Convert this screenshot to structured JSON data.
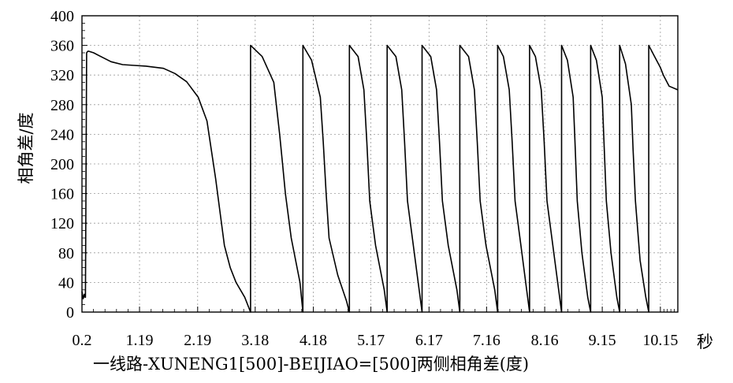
{
  "chart_data": {
    "type": "line",
    "title": "",
    "caption": "一线路-XUNENG1[500]-BEIJIAO=[500]两侧相角差(度)",
    "ylabel": "相角差/度",
    "xunit": "秒",
    "ylim": [
      0,
      400
    ],
    "xlim": [
      0.2,
      10.45
    ],
    "yticks": [
      0,
      40,
      80,
      120,
      160,
      200,
      240,
      280,
      320,
      360,
      400
    ],
    "xticks": [
      "0.2",
      "1.19",
      "2.19",
      "3.18",
      "4.18",
      "5.17",
      "6.17",
      "7.16",
      "8.16",
      "9.15",
      "10.15"
    ],
    "grid": true,
    "series": [
      {
        "color": "#000000",
        "x": [
          0.2,
          0.22,
          0.24,
          0.26,
          0.28,
          0.3,
          0.32,
          0.4,
          0.5,
          0.7,
          0.9,
          1.1,
          1.3,
          1.6,
          1.8,
          2.0,
          2.2,
          2.35,
          2.5,
          2.6,
          2.65,
          2.7,
          2.75,
          2.85,
          3.0,
          3.1,
          3.1,
          3.3,
          3.5,
          3.6,
          3.65,
          3.7,
          3.8,
          3.95,
          4.0,
          4.0,
          4.15,
          4.3,
          4.35,
          4.4,
          4.45,
          4.6,
          4.75,
          4.8,
          4.8,
          4.95,
          5.05,
          5.1,
          5.15,
          5.25,
          5.4,
          5.45,
          5.45,
          5.6,
          5.7,
          5.75,
          5.8,
          5.9,
          6.0,
          6.05,
          6.05,
          6.2,
          6.3,
          6.35,
          6.4,
          6.5,
          6.65,
          6.7,
          6.7,
          6.85,
          6.95,
          7.0,
          7.05,
          7.15,
          7.3,
          7.35,
          7.35,
          7.45,
          7.55,
          7.6,
          7.65,
          7.75,
          7.85,
          7.9,
          7.9,
          8.0,
          8.1,
          8.15,
          8.2,
          8.3,
          8.4,
          8.45,
          8.45,
          8.55,
          8.65,
          8.68,
          8.72,
          8.8,
          8.9,
          8.95,
          8.95,
          9.05,
          9.15,
          9.18,
          9.22,
          9.3,
          9.4,
          9.45,
          9.45,
          9.55,
          9.65,
          9.68,
          9.72,
          9.8,
          9.9,
          9.95,
          9.95,
          10.05,
          10.15,
          10.2,
          10.3,
          10.45
        ],
        "y": [
          28,
          18,
          24,
          20,
          350,
          352,
          352,
          350,
          346,
          338,
          334,
          333,
          332,
          329,
          322,
          311,
          290,
          258,
          180,
          120,
          90,
          75,
          60,
          40,
          20,
          0,
          360,
          345,
          310,
          240,
          200,
          160,
          100,
          40,
          0,
          360,
          340,
          290,
          230,
          160,
          100,
          50,
          15,
          0,
          360,
          345,
          300,
          230,
          150,
          90,
          30,
          0,
          360,
          345,
          300,
          230,
          150,
          90,
          30,
          0,
          360,
          345,
          300,
          230,
          150,
          90,
          30,
          0,
          360,
          345,
          300,
          230,
          150,
          90,
          30,
          0,
          360,
          345,
          300,
          230,
          150,
          90,
          30,
          0,
          360,
          345,
          300,
          230,
          150,
          90,
          30,
          0,
          360,
          340,
          290,
          230,
          150,
          80,
          20,
          0,
          360,
          340,
          290,
          230,
          150,
          80,
          20,
          0,
          360,
          335,
          280,
          220,
          150,
          70,
          20,
          0,
          360,
          345,
          330,
          320,
          305,
          300
        ]
      }
    ]
  }
}
